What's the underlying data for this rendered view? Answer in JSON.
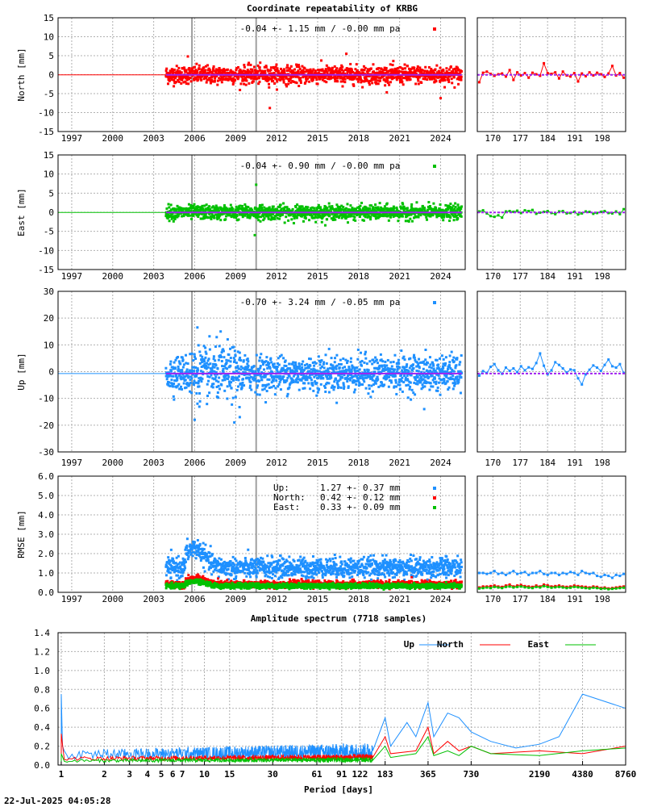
{
  "title": "Coordinate repeatability of KRBG",
  "timestamp": "22-Jul-2025 04:05:28",
  "colors": {
    "north": "#ff0000",
    "east": "#00c000",
    "up": "#1e90ff",
    "trend": "#a020f0",
    "event_line": "#a0a0a0"
  },
  "chart_data": [
    {
      "type": "scatter",
      "id": "north",
      "ylabel": "North [mm]",
      "color": "#ff0000",
      "ylim": [
        -15,
        15
      ],
      "yticks": [
        -15,
        -10,
        -5,
        0,
        5,
        10,
        15
      ],
      "xlim": [
        1996.0,
        2025.8
      ],
      "xticks": [
        "1997",
        "2000",
        "2003",
        "2006",
        "2009",
        "2012",
        "2015",
        "2018",
        "2021",
        "2024"
      ],
      "annotation": "-0.04 +- 1.15 mm / -0.00 mm pa",
      "data_start": 2003.9,
      "data_end": 2025.55,
      "scatter_sd": 1.15,
      "mean": -0.04,
      "event_lines": [
        2005.8,
        2010.5
      ],
      "outliers": [
        [
          2011.5,
          -8.8
        ],
        [
          2024.0,
          -6.2
        ],
        [
          2005.5,
          4.8
        ],
        [
          2017.1,
          5.5
        ]
      ],
      "zoom": {
        "xticks": [
          "170",
          "177",
          "184",
          "191",
          "198"
        ],
        "xlim": [
          166,
          204
        ],
        "values": [
          -2,
          0.5,
          0.8,
          0.2,
          -0.3,
          0.1,
          0.3,
          -0.5,
          1.2,
          -1.4,
          0.6,
          -0.2,
          0.4,
          -0.8,
          0.5,
          0.1,
          -0.3,
          3,
          0.4,
          0.2,
          0.6,
          -1,
          0.8,
          -0.2,
          -0.5,
          0.4,
          -1.8,
          0.3,
          -0.4,
          0.6,
          -0.2,
          0.5,
          0.1,
          -0.6,
          0.3,
          2.3,
          -0.2,
          0.4,
          -0.8
        ]
      }
    },
    {
      "type": "scatter",
      "id": "east",
      "ylabel": "East [mm]",
      "color": "#00c000",
      "ylim": [
        -15,
        15
      ],
      "yticks": [
        -15,
        -10,
        -5,
        0,
        5,
        10,
        15
      ],
      "xlim": [
        1996.0,
        2025.8
      ],
      "xticks": [
        "1997",
        "2000",
        "2003",
        "2006",
        "2009",
        "2012",
        "2015",
        "2018",
        "2021",
        "2024"
      ],
      "annotation": "-0.04 +- 0.90 mm / -0.00 mm pa",
      "data_start": 2003.9,
      "data_end": 2025.55,
      "scatter_sd": 0.9,
      "mean": -0.04,
      "event_lines": [
        2005.8,
        2010.5
      ],
      "outliers": [
        [
          2010.5,
          7.2
        ],
        [
          2010.4,
          -6.0
        ]
      ],
      "zoom": {
        "xticks": [
          "170",
          "177",
          "184",
          "191",
          "198"
        ],
        "xlim": [
          166,
          204
        ],
        "values": [
          0.2,
          0.5,
          -0.3,
          -1.0,
          -1.2,
          -0.8,
          -1.4,
          0.2,
          0.3,
          0.1,
          0.4,
          -0.2,
          0.5,
          0.3,
          0.6,
          -0.4,
          -0.1,
          0.1,
          0.3,
          -0.2,
          -0.5,
          0.2,
          0.3,
          -0.3,
          -0.2,
          0.1,
          -0.6,
          -0.3,
          0.2,
          0.1,
          -0.4,
          -0.2,
          0.1,
          0.3,
          -0.2,
          -0.3,
          0.2,
          -0.5,
          0.8
        ]
      }
    },
    {
      "type": "scatter",
      "id": "up",
      "ylabel": "Up [mm]",
      "color": "#1e90ff",
      "ylim": [
        -30,
        30
      ],
      "yticks": [
        -30,
        -20,
        -10,
        0,
        10,
        20,
        30
      ],
      "xlim": [
        1996.0,
        2025.8
      ],
      "xticks": [
        "1997",
        "2000",
        "2003",
        "2006",
        "2009",
        "2012",
        "2015",
        "2018",
        "2021",
        "2024"
      ],
      "annotation": "-0.70 +- 3.24 mm / -0.05 mm pa",
      "data_start": 2003.9,
      "data_end": 2025.55,
      "scatter_sd": 3.24,
      "mean": -0.7,
      "event_lines": [
        2005.8,
        2010.5
      ],
      "outliers": [
        [
          2006.0,
          -18
        ],
        [
          2008.9,
          -19
        ],
        [
          2009.3,
          -17
        ],
        [
          2006.2,
          16.5
        ],
        [
          2007.9,
          15
        ],
        [
          2022.8,
          -14
        ]
      ],
      "zoom": {
        "xticks": [
          "170",
          "177",
          "184",
          "191",
          "198"
        ],
        "xlim": [
          166,
          204
        ],
        "values": [
          -1.5,
          0.2,
          -0.5,
          1.8,
          2.8,
          0.5,
          -0.8,
          1.5,
          0.3,
          1.2,
          -0.2,
          2.0,
          0.5,
          1.6,
          1.0,
          3.2,
          6.8,
          2.2,
          -1.0,
          0.5,
          3.5,
          2.5,
          1.2,
          -0.3,
          0.8,
          0.5,
          -2.5,
          -4.8,
          -1.0,
          0.7,
          2.3,
          1.5,
          0.3,
          2.5,
          4.5,
          2.0,
          1.5,
          2.8,
          -0.5
        ]
      }
    },
    {
      "type": "scatter",
      "id": "rmse",
      "ylabel": "RMSE [mm]",
      "ylim": [
        0,
        6
      ],
      "yticks": [
        "0.0",
        "1.0",
        "2.0",
        "3.0",
        "4.0",
        "5.0",
        "6.0"
      ],
      "xlim": [
        1996.0,
        2025.8
      ],
      "xticks": [
        "1997",
        "2000",
        "2003",
        "2006",
        "2009",
        "2012",
        "2015",
        "2018",
        "2021",
        "2024"
      ],
      "event_lines": [
        2005.8,
        2010.5
      ],
      "legend": [
        {
          "label": "Up:",
          "value": "1.27 +- 0.37 mm",
          "color": "#1e90ff",
          "mean": 1.27,
          "sd": 0.37
        },
        {
          "label": "North:",
          "value": "0.42 +- 0.12 mm",
          "color": "#ff0000",
          "mean": 0.42,
          "sd": 0.12
        },
        {
          "label": "East:",
          "value": "0.33 +- 0.09 mm",
          "color": "#00c000",
          "mean": 0.33,
          "sd": 0.09
        }
      ],
      "zoom": {
        "xticks": [
          "170",
          "177",
          "184",
          "191",
          "198"
        ],
        "xlim": [
          166,
          204
        ],
        "up": [
          1.0,
          1.0,
          0.95,
          1.0,
          1.1,
          0.95,
          1.0,
          0.9,
          1.0,
          1.1,
          0.95,
          1.0,
          1.05,
          0.9,
          1.0,
          1.0,
          1.1,
          0.95,
          0.9,
          1.0,
          1.0,
          0.9,
          1.0,
          0.95,
          1.05,
          1.0,
          0.9,
          1.1,
          1.0,
          0.95,
          1.0,
          0.85,
          0.8,
          0.9,
          0.85,
          0.75,
          0.9,
          0.85,
          0.95
        ],
        "north": [
          0.25,
          0.3,
          0.3,
          0.32,
          0.35,
          0.3,
          0.28,
          0.35,
          0.4,
          0.3,
          0.35,
          0.38,
          0.32,
          0.3,
          0.28,
          0.35,
          0.3,
          0.4,
          0.36,
          0.3,
          0.32,
          0.35,
          0.3,
          0.28,
          0.3,
          0.35,
          0.32,
          0.3,
          0.28,
          0.25,
          0.3,
          0.28,
          0.22,
          0.25,
          0.2,
          0.22,
          0.25,
          0.28,
          0.3
        ],
        "east": [
          0.2,
          0.22,
          0.25,
          0.22,
          0.28,
          0.25,
          0.22,
          0.28,
          0.3,
          0.25,
          0.28,
          0.3,
          0.26,
          0.24,
          0.22,
          0.28,
          0.25,
          0.32,
          0.28,
          0.24,
          0.26,
          0.28,
          0.25,
          0.22,
          0.24,
          0.28,
          0.26,
          0.24,
          0.22,
          0.2,
          0.24,
          0.22,
          0.18,
          0.2,
          0.16,
          0.18,
          0.2,
          0.22,
          0.24
        ]
      }
    },
    {
      "type": "line",
      "id": "spectrum",
      "title": "Amplitude spectrum (7718 samples)",
      "xlabel": "Period [days]",
      "xscale": "log",
      "ylim": [
        0,
        1.4
      ],
      "yticks": [
        "0.0",
        "0.2",
        "0.4",
        "0.6",
        "0.8",
        "1.0",
        "1.2",
        "1.4"
      ],
      "xticks": [
        {
          "v": 1,
          "label": "1"
        },
        {
          "v": 2,
          "label": "2"
        },
        {
          "v": 3,
          "label": "3"
        },
        {
          "v": 4,
          "label": "4"
        },
        {
          "v": 5,
          "label": "5"
        },
        {
          "v": 6,
          "label": "6"
        },
        {
          "v": 7,
          "label": "7"
        },
        {
          "v": 10,
          "label": "10"
        },
        {
          "v": 15,
          "label": "15"
        },
        {
          "v": 30,
          "label": "30"
        },
        {
          "v": 61,
          "label": "61"
        },
        {
          "v": 91,
          "label": "91"
        },
        {
          "v": 122,
          "label": "122"
        },
        {
          "v": 183,
          "label": "183"
        },
        {
          "v": 365,
          "label": "365"
        },
        {
          "v": 730,
          "label": "730"
        },
        {
          "v": 2190,
          "label": "2190"
        },
        {
          "v": 4380,
          "label": "4380"
        },
        {
          "v": 8760,
          "label": "8760"
        }
      ],
      "xlim": [
        0.95,
        8760
      ],
      "series": [
        {
          "name": "Up",
          "color": "#1e90ff",
          "noise": 0.1,
          "x": [
            1.0,
            1.02,
            1.05,
            1.1,
            150,
            183,
            200,
            260,
            300,
            365,
            400,
            500,
            600,
            730,
            1000,
            1500,
            2190,
            3000,
            4380,
            8760
          ],
          "y": [
            0.75,
            0.2,
            0.15,
            0.1,
            0.15,
            0.5,
            0.2,
            0.45,
            0.3,
            0.66,
            0.3,
            0.55,
            0.5,
            0.35,
            0.25,
            0.18,
            0.22,
            0.3,
            0.75,
            0.6
          ]
        },
        {
          "name": "North",
          "color": "#ff0000",
          "noise": 0.04,
          "x": [
            1.0,
            1.05,
            1.1,
            150,
            183,
            200,
            300,
            365,
            400,
            500,
            600,
            730,
            1000,
            2190,
            4380,
            8760
          ],
          "y": [
            0.33,
            0.06,
            0.05,
            0.08,
            0.3,
            0.12,
            0.15,
            0.4,
            0.12,
            0.25,
            0.15,
            0.2,
            0.12,
            0.15,
            0.12,
            0.2
          ]
        },
        {
          "name": "East",
          "color": "#00c000",
          "noise": 0.03,
          "x": [
            1.0,
            1.05,
            1.1,
            150,
            183,
            200,
            300,
            365,
            400,
            500,
            600,
            730,
            1000,
            2190,
            4380,
            8760
          ],
          "y": [
            0.12,
            0.04,
            0.03,
            0.05,
            0.2,
            0.08,
            0.12,
            0.3,
            0.1,
            0.15,
            0.1,
            0.2,
            0.12,
            0.1,
            0.15,
            0.18
          ]
        }
      ]
    }
  ]
}
